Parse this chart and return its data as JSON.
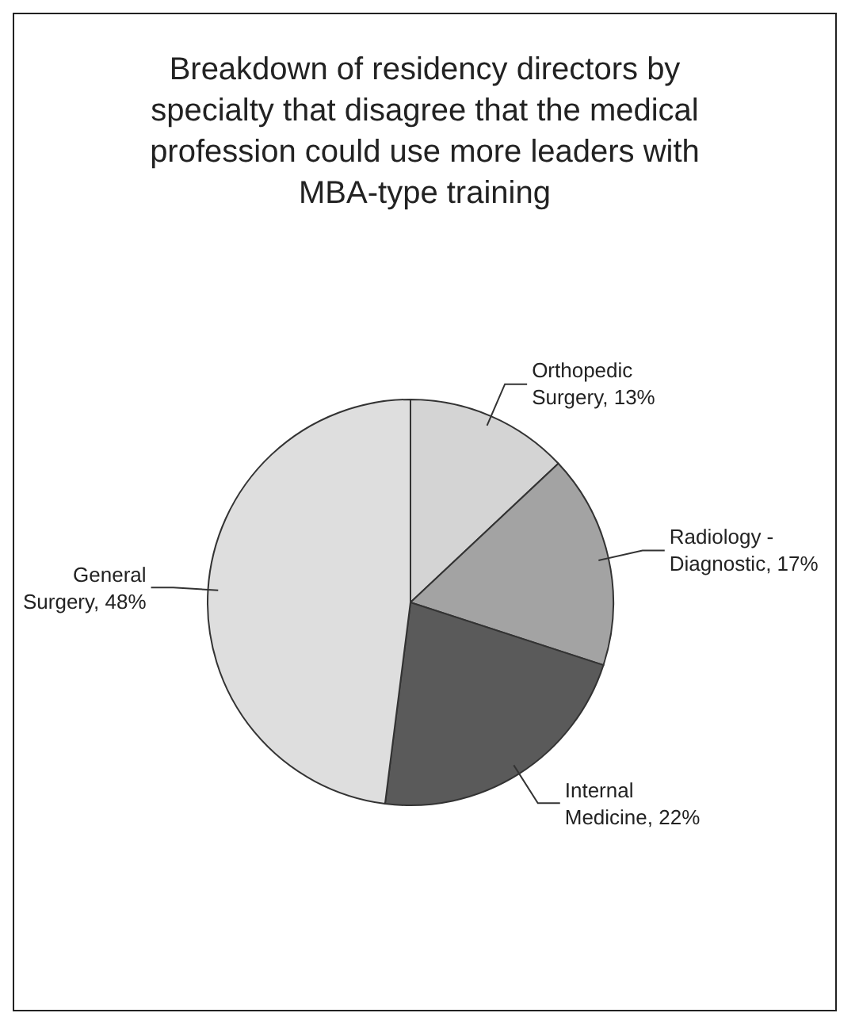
{
  "chart_data": {
    "type": "pie",
    "title": "Breakdown of residency directors by specialty that disagree that the medical profession could use more leaders with MBA-type training",
    "categories": [
      "Orthopedic Surgery",
      "Radiology - Diagnostic",
      "Internal Medicine",
      "General Surgery"
    ],
    "values": [
      13,
      17,
      22,
      48
    ],
    "value_labels": [
      "13%",
      "17%",
      "22%",
      "48%"
    ],
    "colors": [
      "#d4d4d4",
      "#a3a3a3",
      "#5a5a5a",
      "#dedede"
    ],
    "legend": false
  }
}
